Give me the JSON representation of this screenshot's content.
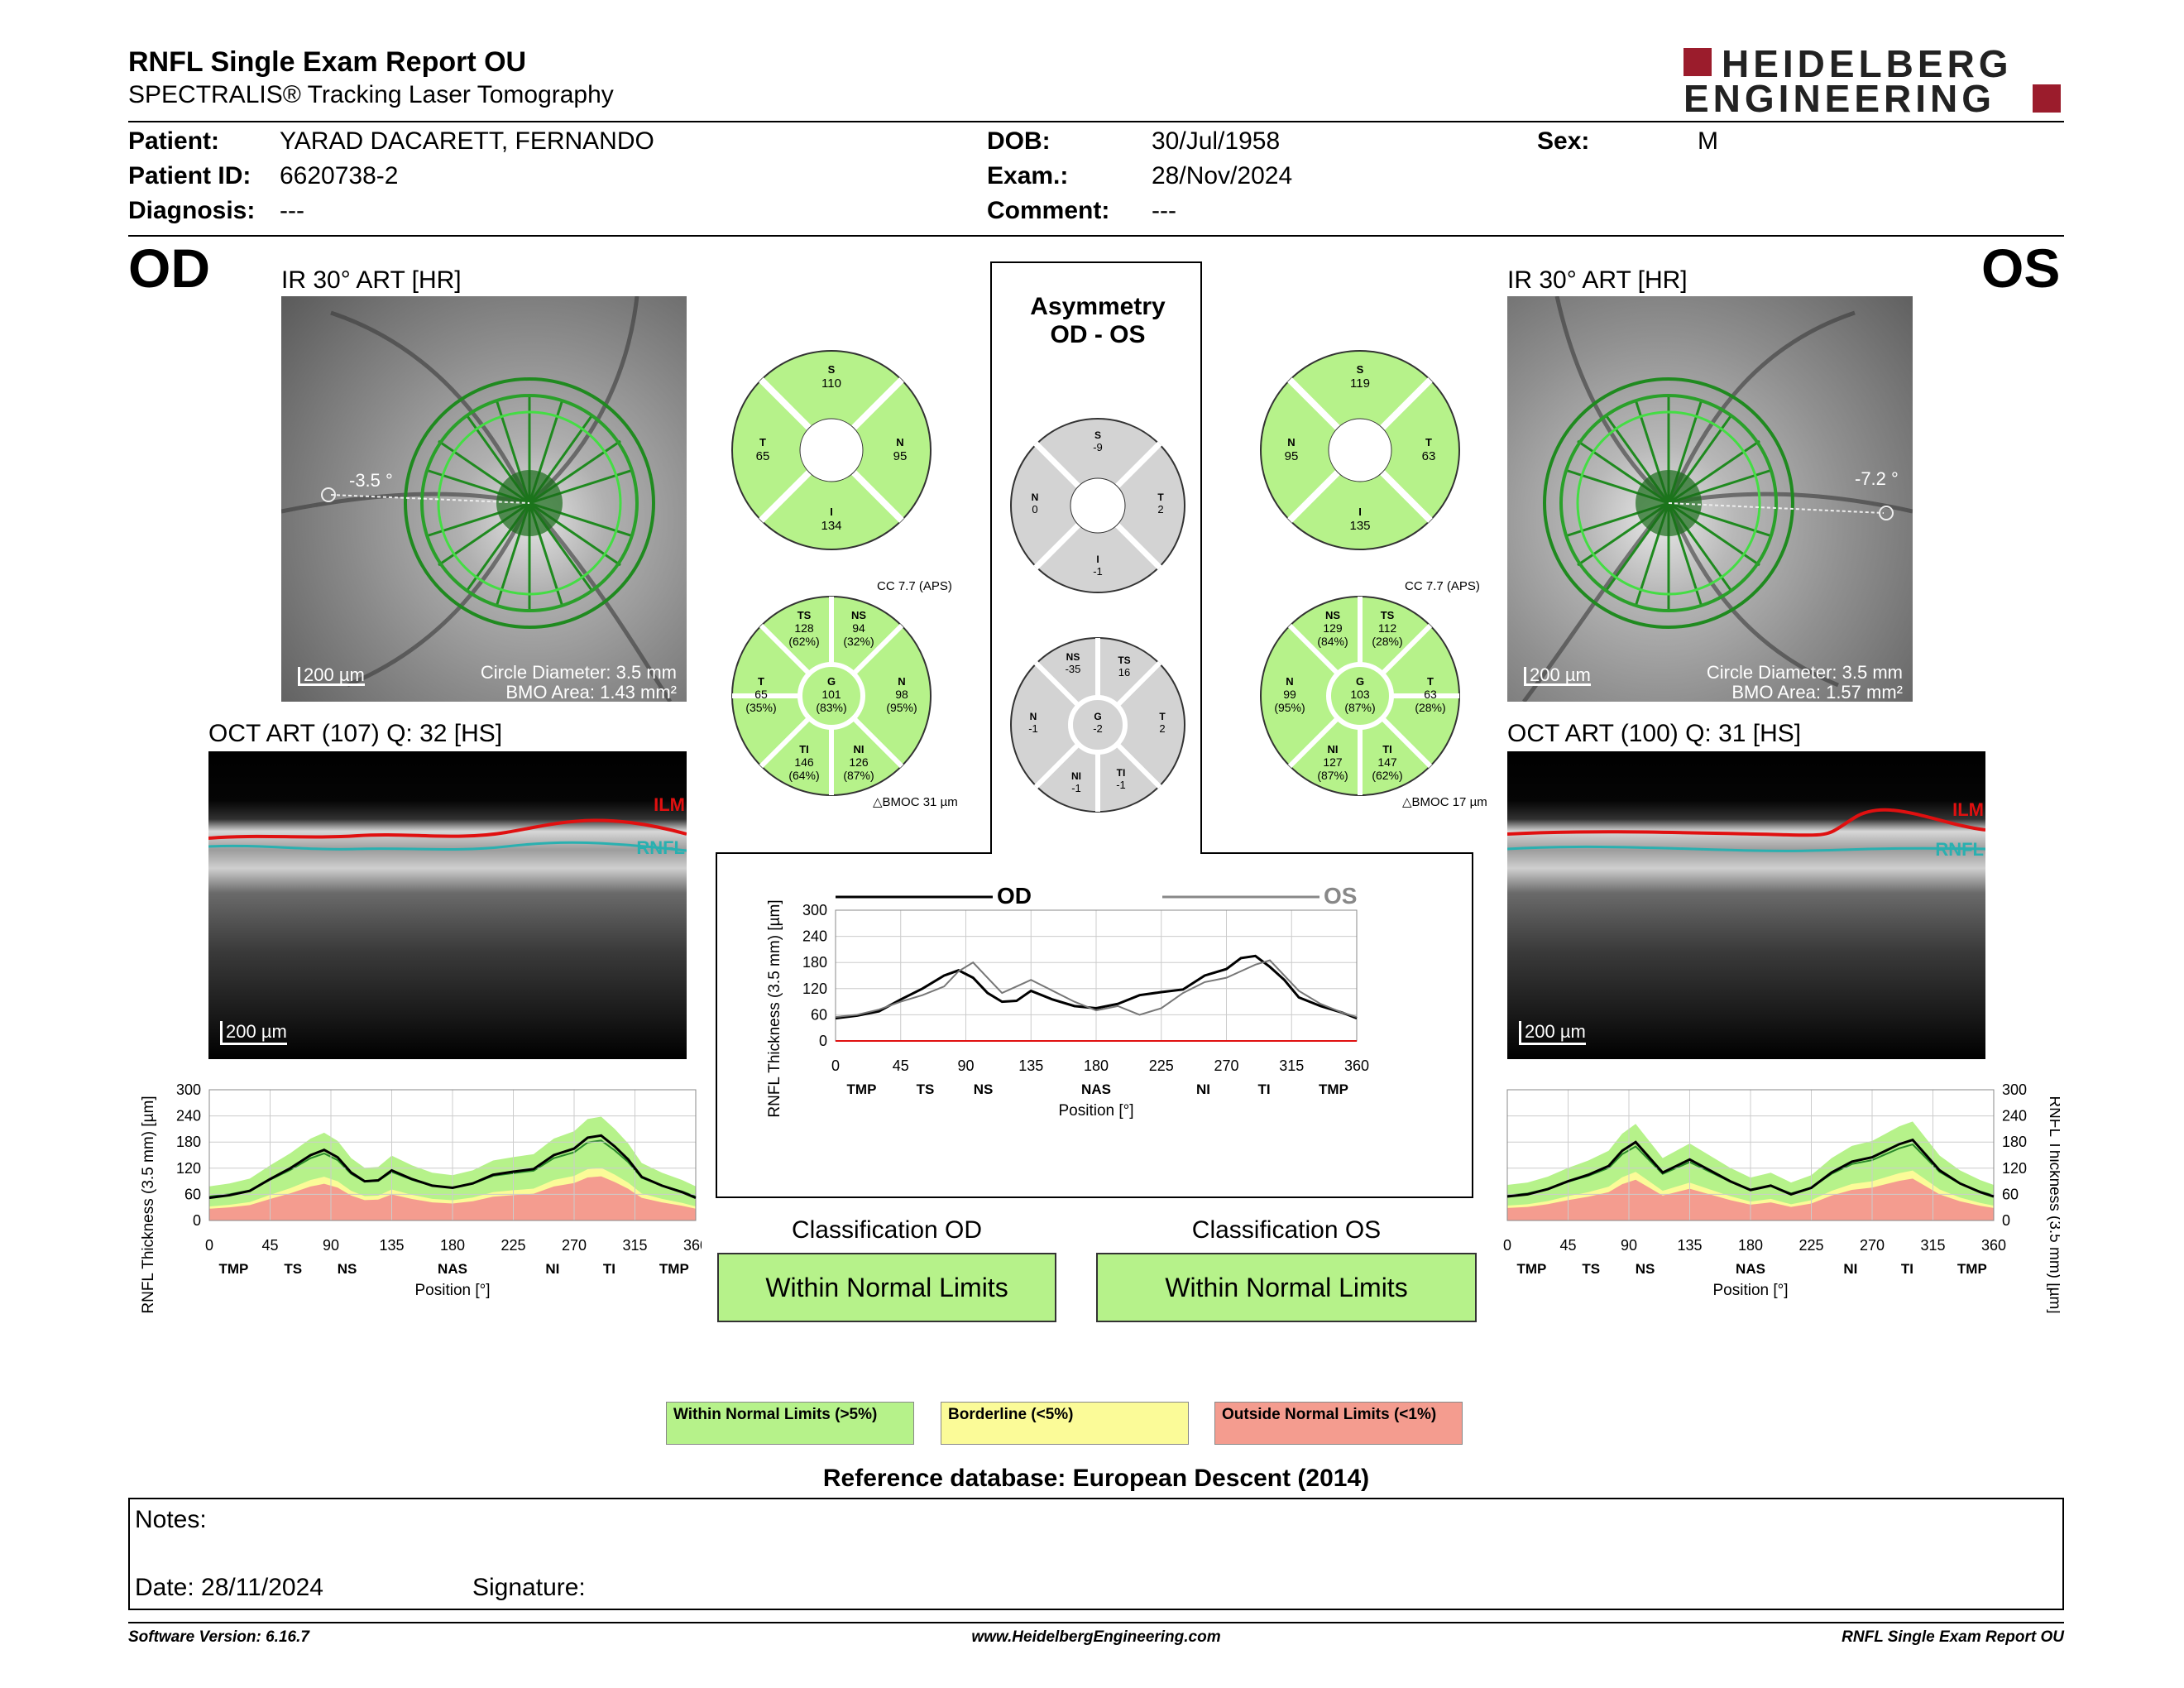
{
  "report": {
    "title": "RNFL Single Exam Report OU",
    "subtitle": "SPECTRALIS® Tracking Laser Tomography",
    "logo_line1": "HEIDELBERG",
    "logo_line2": "ENGINEERING"
  },
  "patient": {
    "patient_label": "Patient:",
    "patient_value": "YARAD DACARETT, FERNANDO",
    "id_label": "Patient ID:",
    "id_value": "6620738-2",
    "diagnosis_label": "Diagnosis:",
    "diagnosis_value": "---",
    "dob_label": "DOB:",
    "dob_value": "30/Jul/1958",
    "exam_label": "Exam.:",
    "exam_value": "28/Nov/2024",
    "comment_label": "Comment:",
    "comment_value": "---",
    "sex_label": "Sex:",
    "sex_value": "M"
  },
  "od": {
    "eye": "OD",
    "ir_title": "IR 30° ART [HR]",
    "angle": "-3.5 °",
    "scale": "200 µm",
    "circle_diameter": "Circle Diameter: 3.5 mm",
    "bmo_area": "BMO Area: 1.43 mm²",
    "oct_title": "OCT ART (107) Q: 32 [HS]",
    "oct_scale": "200 µm",
    "ilm": "ILM",
    "rnfl": "RNFL",
    "quad": {
      "s_l": "S",
      "s": "110",
      "t_l": "T",
      "t": "65",
      "n_l": "N",
      "n": "95",
      "i_l": "I",
      "i": "134"
    },
    "cc": "CC 7.7 (APS)",
    "sectors": {
      "ts_l": "TS",
      "ts": "128",
      "ts_p": "(62%)",
      "ns_l": "NS",
      "ns": "94",
      "ns_p": "(32%)",
      "t_l": "T",
      "t": "65",
      "t_p": "(35%)",
      "g_l": "G",
      "g": "101",
      "g_p": "(83%)",
      "n_l": "N",
      "n": "98",
      "n_p": "(95%)",
      "ti_l": "TI",
      "ti": "146",
      "ti_p": "(64%)",
      "ni_l": "NI",
      "ni": "126",
      "ni_p": "(87%)"
    },
    "bmoc": "BMOC 31 µm",
    "classification_title": "Classification OD",
    "classification": "Within Normal Limits"
  },
  "os": {
    "eye": "OS",
    "ir_title": "IR 30° ART [HR]",
    "angle": "-7.2 °",
    "scale": "200 µm",
    "circle_diameter": "Circle Diameter: 3.5 mm",
    "bmo_area": "BMO Area: 1.57 mm²",
    "oct_title": "OCT ART (100) Q: 31 [HS]",
    "oct_scale": "200 µm",
    "ilm": "ILM",
    "rnfl": "RNFL",
    "quad": {
      "s_l": "S",
      "s": "119",
      "n_l": "N",
      "n": "95",
      "t_l": "T",
      "t": "63",
      "i_l": "I",
      "i": "135"
    },
    "cc": "CC 7.7 (APS)",
    "sectors": {
      "ns_l": "NS",
      "ns": "129",
      "ns_p": "(84%)",
      "ts_l": "TS",
      "ts": "112",
      "ts_p": "(28%)",
      "n_l": "N",
      "n": "99",
      "n_p": "(95%)",
      "g_l": "G",
      "g": "103",
      "g_p": "(87%)",
      "t_l": "T",
      "t": "63",
      "t_p": "(28%)",
      "ni_l": "NI",
      "ni": "127",
      "ni_p": "(87%)",
      "ti_l": "TI",
      "ti": "147",
      "ti_p": "(62%)"
    },
    "bmoc": "BMOC 17 µm",
    "classification_title": "Classification OS",
    "classification": "Within Normal Limits"
  },
  "asym": {
    "title1": "Asymmetry",
    "title2": "OD - OS",
    "quad": {
      "s_l": "S",
      "s": "-9",
      "n_l": "N",
      "n": "0",
      "t_l": "T",
      "t": "2",
      "i_l": "I",
      "i": "-1"
    },
    "sectors": {
      "ns_l": "NS",
      "ns": "-35",
      "ts_l": "TS",
      "ts": "16",
      "n_l": "N",
      "n": "-1",
      "g_l": "G",
      "g": "-2",
      "t_l": "T",
      "t": "2",
      "ni_l": "NI",
      "ni": "-1",
      "ti_l": "TI",
      "ti": "-1"
    }
  },
  "legend": {
    "wnl": "Within Normal Limits (>5%)",
    "bl": "Borderline (<5%)",
    "onl": "Outside Normal Limits (<1%)",
    "reference": "Reference database: European Descent (2014)"
  },
  "notes": {
    "notes_label": "Notes:",
    "date": "Date: 28/11/2024",
    "signature": "Signature:"
  },
  "footer": {
    "version": "Software Version: 6.16.7",
    "url": "www.HeidelbergEngineering.com",
    "name": "RNFL Single Exam Report OU"
  },
  "colors": {
    "green": "#b6f28a",
    "yellow": "#fbfb98",
    "red": "#f49c8f",
    "brand": "#9b1c2c",
    "gray": "#d3d3d3"
  },
  "chart_data": [
    {
      "type": "line",
      "name": "od_profile",
      "ylabel": "RNFL Thickness (3.5 mm) [µm]",
      "xlabel": "Position [°]",
      "xlim": [
        0,
        360
      ],
      "ylim": [
        0,
        300
      ],
      "x_ticks": [
        0,
        45,
        90,
        135,
        180,
        225,
        270,
        315,
        360
      ],
      "y_ticks": [
        0,
        60,
        120,
        180,
        240,
        300
      ],
      "sector_labels": [
        "TMP",
        "TS",
        "NS",
        "NAS",
        "NI",
        "TI",
        "TMP"
      ],
      "sector_positions": [
        18,
        62,
        102,
        180,
        254,
        296,
        344
      ],
      "x": [
        0,
        15,
        30,
        45,
        60,
        75,
        85,
        95,
        105,
        115,
        125,
        135,
        150,
        165,
        180,
        195,
        210,
        225,
        240,
        255,
        270,
        280,
        290,
        300,
        310,
        320,
        335,
        350,
        360
      ],
      "series": [
        {
          "values": [
            52,
            58,
            68,
            95,
            120,
            150,
            162,
            145,
            110,
            90,
            92,
            115,
            95,
            80,
            75,
            85,
            105,
            112,
            118,
            150,
            165,
            190,
            195,
            170,
            140,
            100,
            80,
            65,
            52
          ]
        }
      ]
    },
    {
      "type": "line",
      "name": "os_profile",
      "ylabel": "RNFL Thickness (3.5 mm) [µm]",
      "xlabel": "Position [°]",
      "xlim": [
        0,
        360
      ],
      "ylim": [
        0,
        300
      ],
      "x_ticks": [
        0,
        45,
        90,
        135,
        180,
        225,
        270,
        315,
        360
      ],
      "y_ticks": [
        0,
        60,
        120,
        180,
        240,
        300
      ],
      "sector_labels": [
        "TMP",
        "TS",
        "NS",
        "NAS",
        "NI",
        "TI",
        "TMP"
      ],
      "sector_positions": [
        18,
        62,
        102,
        180,
        254,
        296,
        344
      ],
      "x": [
        0,
        15,
        30,
        45,
        60,
        75,
        85,
        95,
        105,
        115,
        125,
        135,
        150,
        165,
        180,
        195,
        210,
        225,
        240,
        255,
        270,
        280,
        290,
        300,
        310,
        320,
        335,
        350,
        360
      ],
      "series": [
        {
          "values": [
            55,
            60,
            72,
            90,
            105,
            125,
            160,
            180,
            145,
            110,
            125,
            140,
            115,
            90,
            70,
            80,
            60,
            75,
            110,
            135,
            145,
            160,
            175,
            185,
            150,
            115,
            85,
            65,
            55
          ]
        }
      ]
    },
    {
      "type": "line",
      "name": "od_os_comparison",
      "ylabel": "RNFL Thickness (3.5 mm) [µm]",
      "xlabel": "Position [°]",
      "xlim": [
        0,
        360
      ],
      "ylim": [
        0,
        300
      ],
      "x_ticks": [
        0,
        45,
        90,
        135,
        180,
        225,
        270,
        315,
        360
      ],
      "y_ticks": [
        0,
        60,
        120,
        180,
        240,
        300
      ],
      "sector_labels": [
        "TMP",
        "TS",
        "NS",
        "NAS",
        "NI",
        "TI",
        "TMP"
      ],
      "sector_positions": [
        18,
        62,
        102,
        180,
        254,
        296,
        344
      ],
      "x": [
        0,
        15,
        30,
        45,
        60,
        75,
        85,
        95,
        105,
        115,
        125,
        135,
        150,
        165,
        180,
        195,
        210,
        225,
        240,
        255,
        270,
        280,
        290,
        300,
        310,
        320,
        335,
        350,
        360
      ],
      "series": [
        {
          "name": "OD",
          "values": [
            52,
            58,
            68,
            95,
            120,
            150,
            162,
            145,
            110,
            90,
            92,
            115,
            95,
            80,
            75,
            85,
            105,
            112,
            118,
            150,
            165,
            190,
            195,
            170,
            140,
            100,
            80,
            65,
            52
          ]
        },
        {
          "name": "OS",
          "values": [
            55,
            60,
            72,
            90,
            105,
            125,
            160,
            180,
            145,
            110,
            125,
            140,
            115,
            90,
            70,
            80,
            60,
            75,
            110,
            135,
            145,
            160,
            175,
            185,
            150,
            115,
            85,
            65,
            55
          ]
        }
      ]
    }
  ]
}
